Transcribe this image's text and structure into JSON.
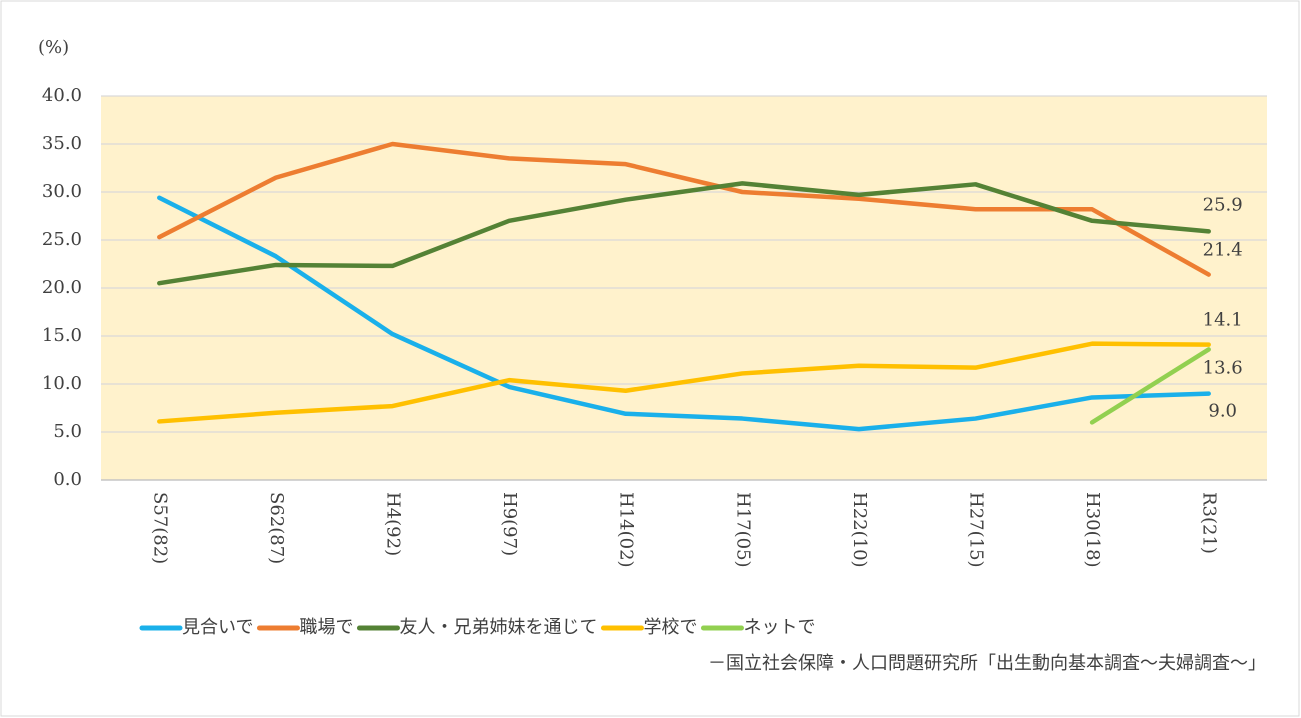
{
  "chart_data": {
    "type": "line",
    "y_label": "(%)",
    "source": "－国立社会保障・人口問題研究所「出生動向基本調査～夫婦調査～」",
    "categories": [
      "S57(82)",
      "S62(87)",
      "H4(92)",
      "H9(97)",
      "H14(02)",
      "H17(05)",
      "H22(10)",
      "H27(15)",
      "H30(18)",
      "R3(21)"
    ],
    "ylim": [
      0,
      40
    ],
    "yticks": [
      {
        "value": 0,
        "label": "0.0"
      },
      {
        "value": 5,
        "label": "5.0"
      },
      {
        "value": 10,
        "label": "10.0"
      },
      {
        "value": 15,
        "label": "15.0"
      },
      {
        "value": 20,
        "label": "20.0"
      },
      {
        "value": 25,
        "label": "25.0"
      },
      {
        "value": 30,
        "label": "30.0"
      },
      {
        "value": 35,
        "label": "35.0"
      },
      {
        "value": 40,
        "label": "40.0"
      }
    ],
    "grid": true,
    "plot_background": "#fff2cc",
    "legend": "bottom",
    "series": [
      {
        "name": "見合いで",
        "color": "#1ab0ea",
        "values": [
          29.4,
          23.3,
          15.2,
          9.7,
          6.9,
          6.4,
          5.3,
          6.4,
          8.6,
          9.0
        ],
        "value_labels": [
          null,
          null,
          null,
          null,
          null,
          null,
          null,
          null,
          null,
          "9.0"
        ]
      },
      {
        "name": "職場で",
        "color": "#ed7d31",
        "values": [
          25.3,
          31.5,
          35.0,
          33.5,
          32.9,
          30.0,
          29.3,
          28.2,
          28.2,
          21.4
        ],
        "value_labels": [
          null,
          null,
          null,
          null,
          null,
          null,
          null,
          null,
          null,
          "21.4"
        ]
      },
      {
        "name": "友人・兄弟姉妹を通じて",
        "color": "#548235",
        "values": [
          20.5,
          22.4,
          22.3,
          27.0,
          29.2,
          30.9,
          29.7,
          30.8,
          27.0,
          25.9
        ],
        "value_labels": [
          null,
          null,
          null,
          null,
          null,
          null,
          null,
          null,
          null,
          "25.9"
        ]
      },
      {
        "name": "学校で",
        "color": "#ffc000",
        "values": [
          6.1,
          7.0,
          7.7,
          10.4,
          9.3,
          11.1,
          11.9,
          11.7,
          14.2,
          14.1
        ],
        "value_labels": [
          null,
          null,
          null,
          null,
          null,
          null,
          null,
          null,
          null,
          "14.1"
        ]
      },
      {
        "name": "ネットで",
        "color": "#92d050",
        "values": [
          null,
          null,
          null,
          null,
          null,
          null,
          null,
          null,
          6.0,
          13.6
        ],
        "value_labels": [
          null,
          null,
          null,
          null,
          null,
          null,
          null,
          null,
          null,
          "13.6"
        ]
      }
    ]
  }
}
